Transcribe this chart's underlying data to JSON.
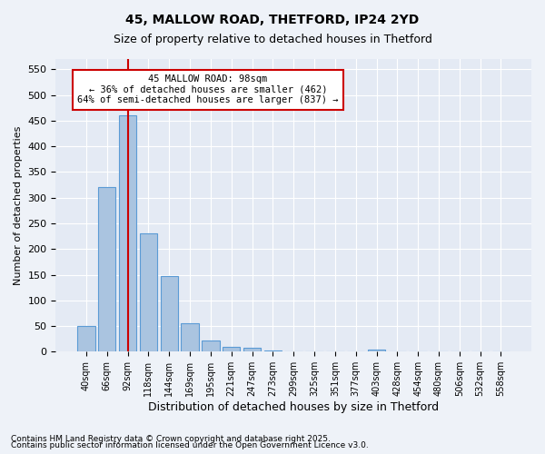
{
  "title1": "45, MALLOW ROAD, THETFORD, IP24 2YD",
  "title2": "Size of property relative to detached houses in Thetford",
  "xlabel": "Distribution of detached houses by size in Thetford",
  "ylabel": "Number of detached properties",
  "categories": [
    "40sqm",
    "66sqm",
    "92sqm",
    "118sqm",
    "144sqm",
    "169sqm",
    "195sqm",
    "221sqm",
    "247sqm",
    "273sqm",
    "299sqm",
    "325sqm",
    "351sqm",
    "377sqm",
    "403sqm",
    "428sqm",
    "454sqm",
    "480sqm",
    "506sqm",
    "532sqm",
    "558sqm"
  ],
  "values": [
    50,
    320,
    460,
    230,
    148,
    55,
    22,
    10,
    8,
    3,
    1,
    0,
    0,
    0,
    5,
    0,
    0,
    0,
    0,
    0,
    0
  ],
  "bar_color": "#aac4e0",
  "bar_edge_color": "#5b9bd5",
  "vline_x": 2.0,
  "vline_color": "#cc0000",
  "annotation_text": "45 MALLOW ROAD: 98sqm\n← 36% of detached houses are smaller (462)\n64% of semi-detached houses are larger (837) →",
  "annotation_box_color": "#cc0000",
  "ylim": [
    0,
    570
  ],
  "yticks": [
    0,
    50,
    100,
    150,
    200,
    250,
    300,
    350,
    400,
    450,
    500,
    550
  ],
  "footer1": "Contains HM Land Registry data © Crown copyright and database right 2025.",
  "footer2": "Contains public sector information licensed under the Open Government Licence v3.0.",
  "bg_color": "#eef2f8",
  "plot_bg_color": "#e4eaf4"
}
